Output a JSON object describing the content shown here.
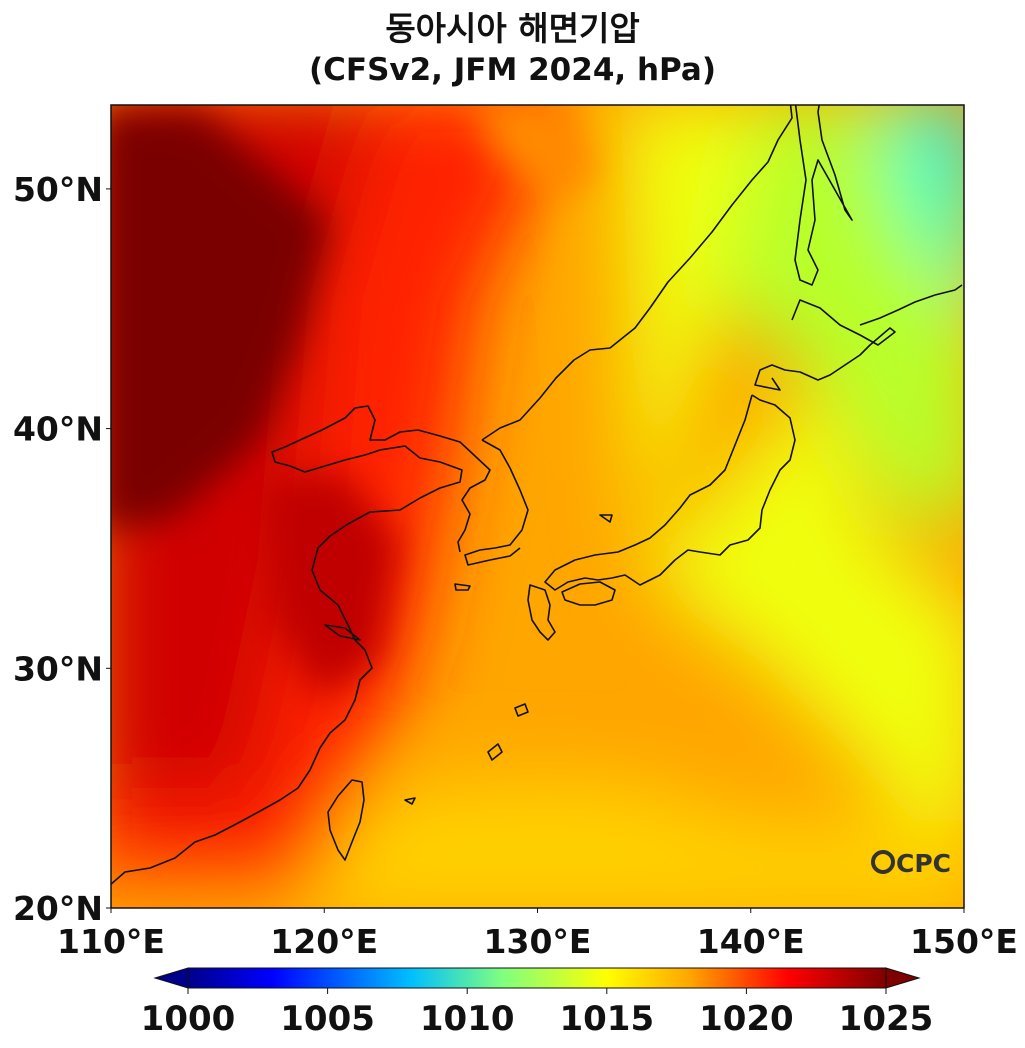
{
  "title": "동아시아 해면기압",
  "subtitle": "(CFSv2, JFM 2024, hPa)",
  "map": {
    "lon_range": [
      110,
      150
    ],
    "lat_range": [
      20,
      53.5
    ],
    "lon_ticks": [
      "110°E",
      "120°E",
      "130°E",
      "140°E",
      "150°E"
    ],
    "lat_ticks": [
      "20°N",
      "30°N",
      "40°N",
      "50°N"
    ],
    "variable": "sea level pressure",
    "unit": "hPa",
    "coastlines": true
  },
  "colorbar": {
    "range": [
      1000,
      1025
    ],
    "extend": "both",
    "tick_labels": [
      "1000",
      "1005",
      "1010",
      "1015",
      "1020",
      "1025"
    ],
    "colors": [
      "#00008b",
      "#0000ff",
      "#00bfff",
      "#7fff7f",
      "#ffff00",
      "#ffa500",
      "#ff0000",
      "#7f0000"
    ]
  },
  "logo": {
    "text": "CPC"
  }
}
